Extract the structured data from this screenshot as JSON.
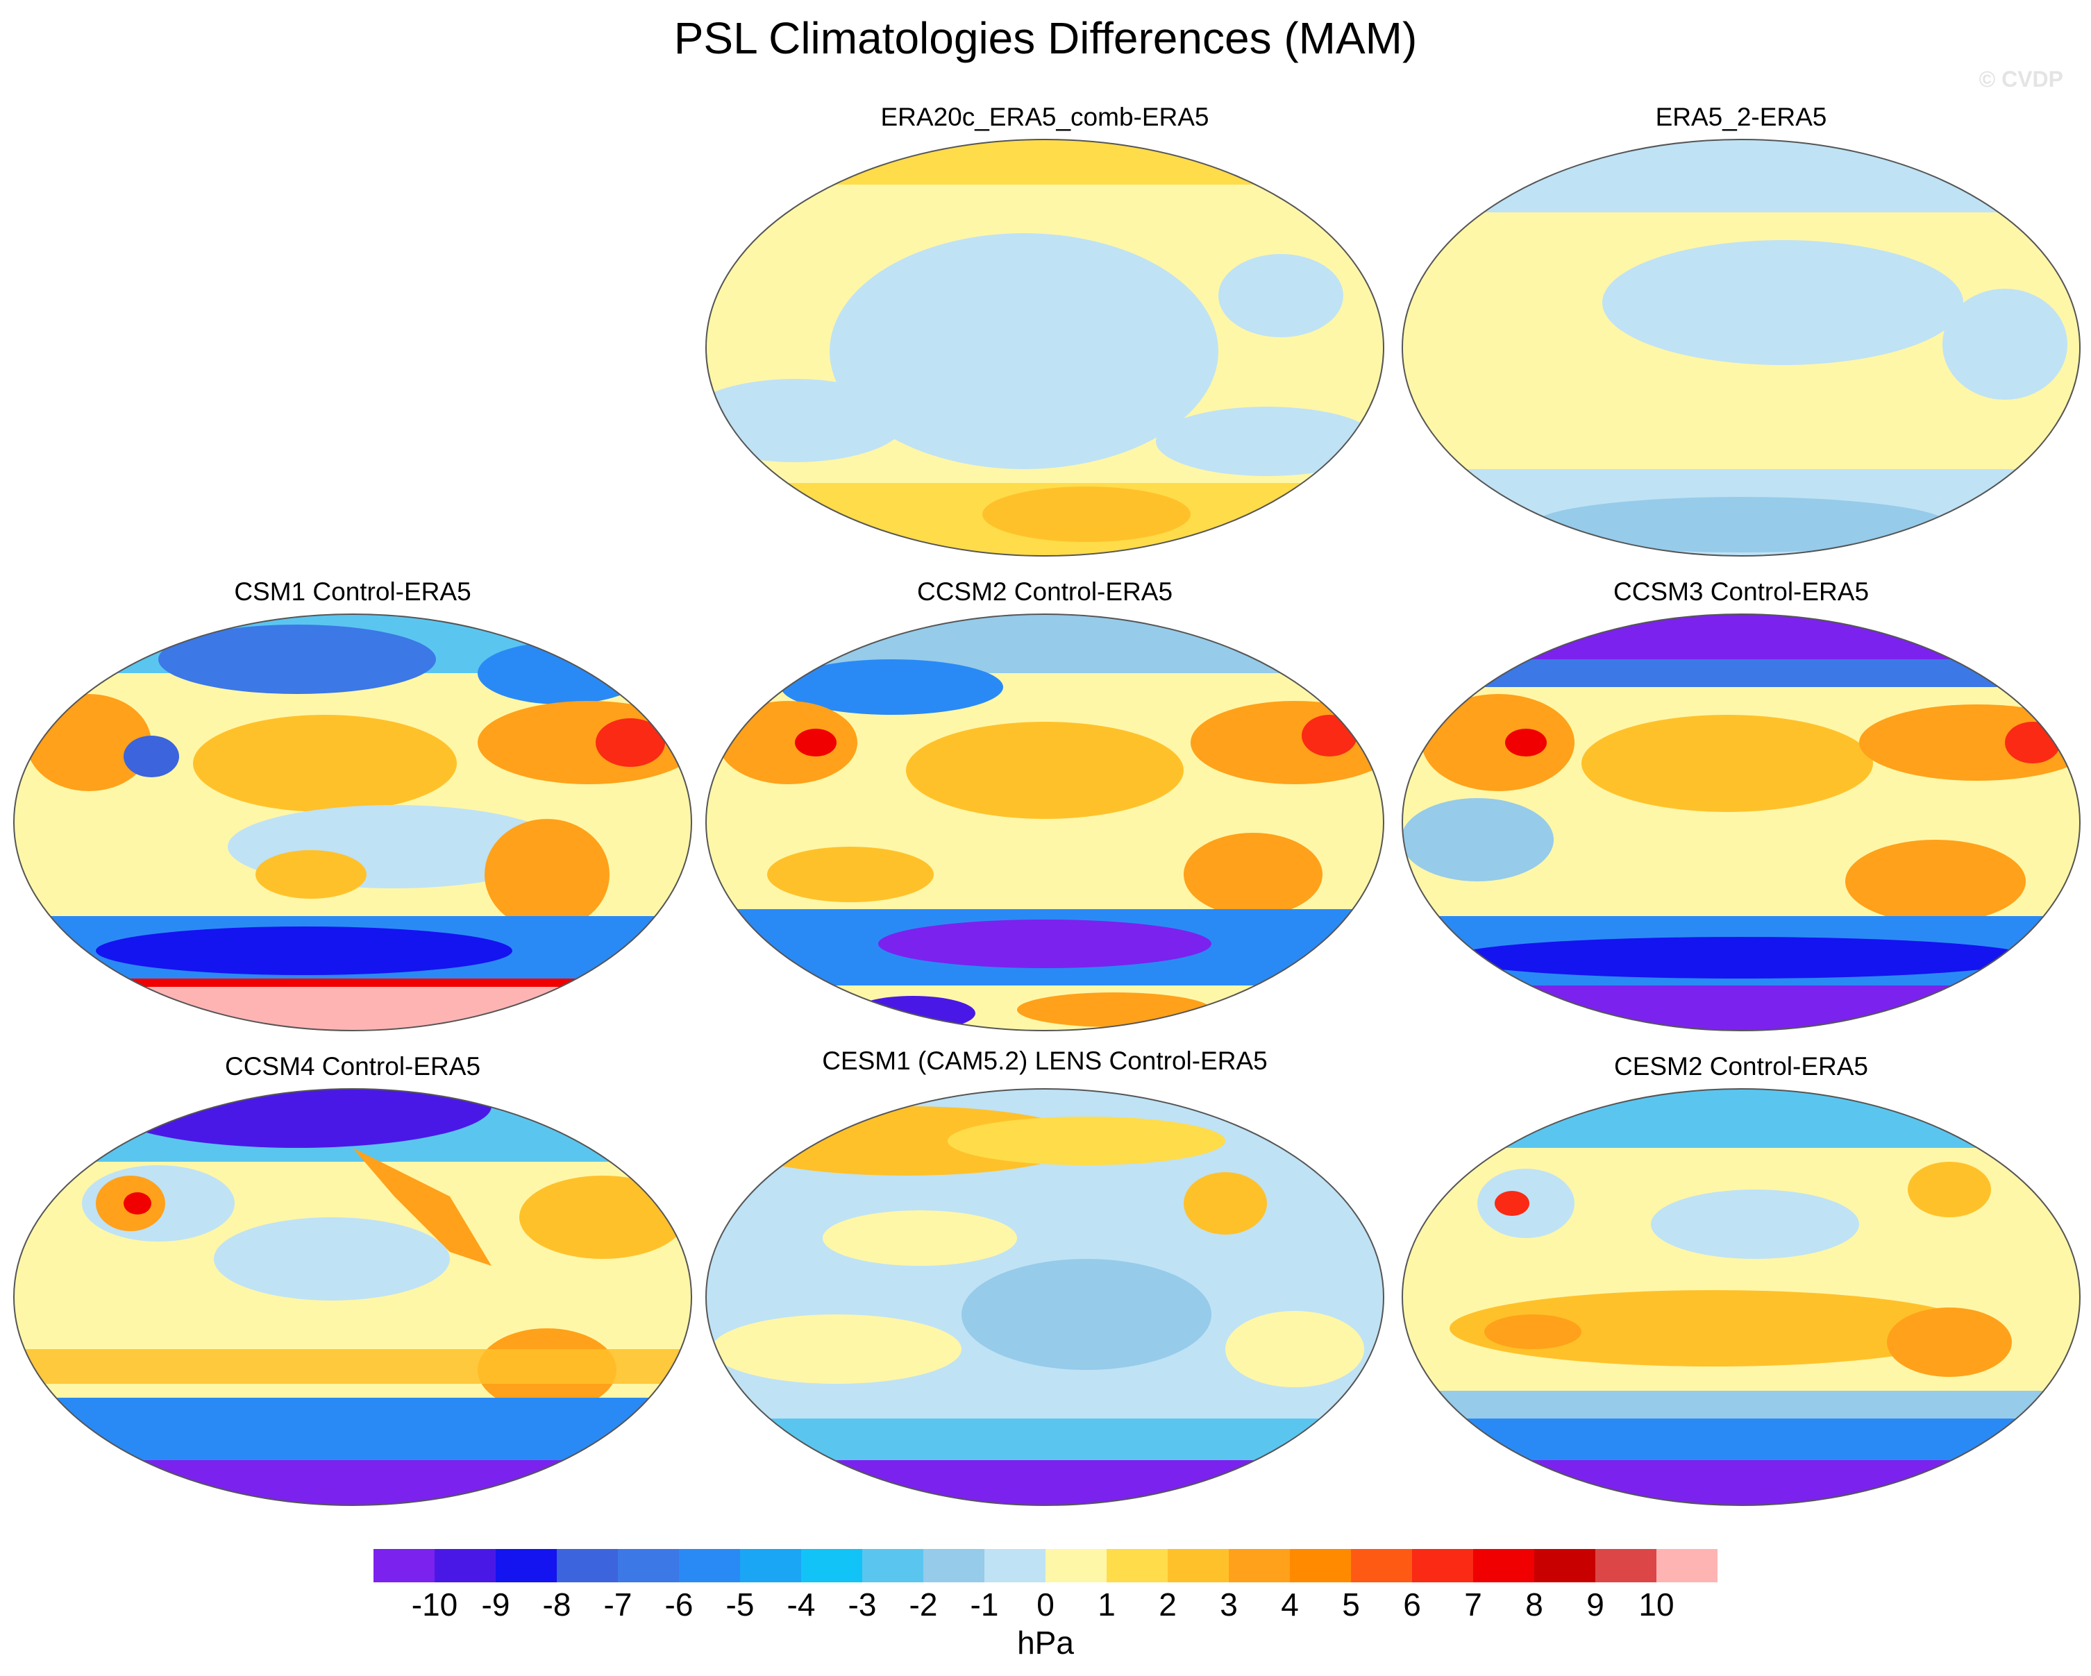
{
  "title": "PSL Climatologies Differences (MAM)",
  "watermark": "© CVDP",
  "units": "hPa",
  "colorbar": {
    "labels": [
      "-10",
      "-9",
      "-8",
      "-7",
      "-6",
      "-5",
      "-4",
      "-3",
      "-2",
      "-1",
      "0",
      "1",
      "2",
      "3",
      "4",
      "5",
      "6",
      "7",
      "8",
      "9",
      "10"
    ],
    "colors": [
      "#7b22ee",
      "#4a18e6",
      "#1414f0",
      "#3c64dc",
      "#3c78e6",
      "#2a8af5",
      "#1aa6f5",
      "#12c3f7",
      "#5ac6f0",
      "#96cbea",
      "#bfe2f5",
      "#fff7a8",
      "#ffdc4a",
      "#ffc12a",
      "#ffa11a",
      "#ff8a00",
      "#ff5a14",
      "#fa2a14",
      "#f00000",
      "#c80000",
      "#dc4646",
      "#ffb4b4"
    ]
  },
  "panels": [
    {
      "id": "era20c",
      "title": "ERA20c_ERA5_comb-ERA5"
    },
    {
      "id": "era5_2",
      "title": "ERA5_2-ERA5"
    },
    {
      "id": "csm1",
      "title": "CSM1 Control-ERA5"
    },
    {
      "id": "ccsm2",
      "title": "CCSM2 Control-ERA5"
    },
    {
      "id": "ccsm3",
      "title": "CCSM3 Control-ERA5"
    },
    {
      "id": "ccsm4",
      "title": "CCSM4 Control-ERA5"
    },
    {
      "id": "cesm1",
      "title": "CESM1 (CAM5.2) LENS Control-ERA5"
    },
    {
      "id": "cesm2",
      "title": "CESM2 Control-ERA5"
    }
  ]
}
